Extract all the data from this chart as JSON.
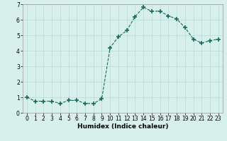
{
  "x": [
    0,
    1,
    2,
    3,
    4,
    5,
    6,
    7,
    8,
    9,
    10,
    11,
    12,
    13,
    14,
    15,
    16,
    17,
    18,
    19,
    20,
    21,
    22,
    23
  ],
  "y": [
    1.0,
    0.75,
    0.75,
    0.75,
    0.6,
    0.8,
    0.8,
    0.6,
    0.6,
    0.9,
    4.2,
    4.9,
    5.3,
    6.2,
    6.8,
    6.55,
    6.55,
    6.25,
    6.05,
    5.5,
    4.75,
    4.5,
    4.65,
    4.75
  ],
  "line_color": "#1a6b5a",
  "marker": "+",
  "marker_size": 4,
  "xlabel": "Humidex (Indice chaleur)",
  "ylabel": "",
  "xlim": [
    -0.5,
    23.5
  ],
  "ylim": [
    0,
    7
  ],
  "yticks": [
    0,
    1,
    2,
    3,
    4,
    5,
    6,
    7
  ],
  "xticks": [
    0,
    1,
    2,
    3,
    4,
    5,
    6,
    7,
    8,
    9,
    10,
    11,
    12,
    13,
    14,
    15,
    16,
    17,
    18,
    19,
    20,
    21,
    22,
    23
  ],
  "background_color": "#d7f0eb",
  "grid_color": "#b8ddd6",
  "label_fontsize": 6.5,
  "tick_fontsize": 5.5
}
